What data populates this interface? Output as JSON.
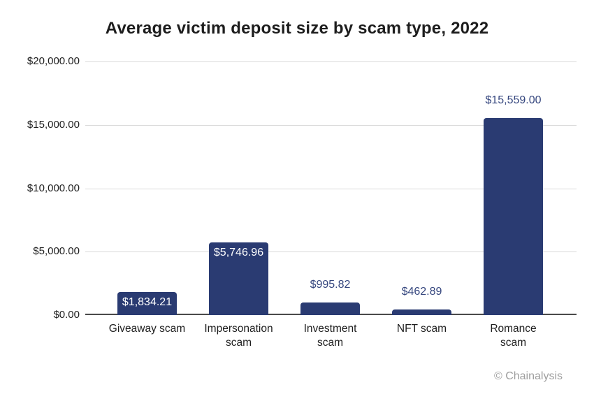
{
  "title": "Average victim deposit size by scam type, 2022",
  "watermark": "© Chainalysis",
  "colors": {
    "bar": "#2a3b72",
    "label_inside": "#ffffff",
    "label_above": "#35467e",
    "axis_text": "#1d1d1d",
    "gridline": "#dadada",
    "axis_line": "#4a4a4a",
    "watermark": "#9e9e9e"
  },
  "chart_data": {
    "type": "bar",
    "title": "Average victim deposit size by scam type, 2022",
    "categories": [
      "Giveaway scam",
      "Impersonation scam",
      "Investment scam",
      "NFT scam",
      "Romance scam"
    ],
    "category_lines": [
      [
        "Giveaway scam"
      ],
      [
        "Impersonation",
        "scam"
      ],
      [
        "Investment",
        "scam"
      ],
      [
        "NFT scam"
      ],
      [
        "Romance",
        "scam"
      ]
    ],
    "values": [
      1834.21,
      5746.96,
      995.82,
      462.89,
      15559.0
    ],
    "value_labels": [
      "$1,834.21",
      "$5,746.96",
      "$995.82",
      "$462.89",
      "$15,559.00"
    ],
    "label_positions": [
      "inside",
      "inside",
      "above",
      "above",
      "above"
    ],
    "y_ticks": {
      "values": [
        0,
        5000,
        10000,
        15000,
        20000
      ],
      "labels": [
        "$0.00",
        "$5,000.00",
        "$10,000.00",
        "$15,000.00",
        "$20,000.00"
      ]
    },
    "ylim": [
      0,
      20000
    ],
    "xlabel": "",
    "ylabel": "",
    "grid": "horizontal",
    "legend": "none",
    "source_label": "© Chainalysis"
  }
}
